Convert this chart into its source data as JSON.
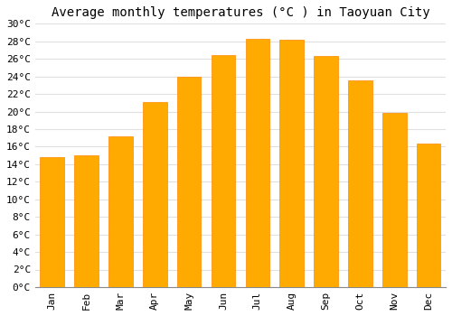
{
  "title": "Average monthly temperatures (°C ) in Taoyuan City",
  "months": [
    "Jan",
    "Feb",
    "Mar",
    "Apr",
    "May",
    "Jun",
    "Jul",
    "Aug",
    "Sep",
    "Oct",
    "Nov",
    "Dec"
  ],
  "temperatures": [
    14.8,
    15.0,
    17.2,
    21.1,
    24.0,
    26.4,
    28.3,
    28.2,
    26.3,
    23.5,
    19.8,
    16.3
  ],
  "bar_color": "#FFAA00",
  "bar_edge_color": "#FF8800",
  "ylim": [
    0,
    30
  ],
  "ytick_step": 2,
  "background_color": "#FFFFFF",
  "grid_color": "#E0E0E0",
  "title_fontsize": 10,
  "tick_fontsize": 8,
  "font_family": "monospace"
}
